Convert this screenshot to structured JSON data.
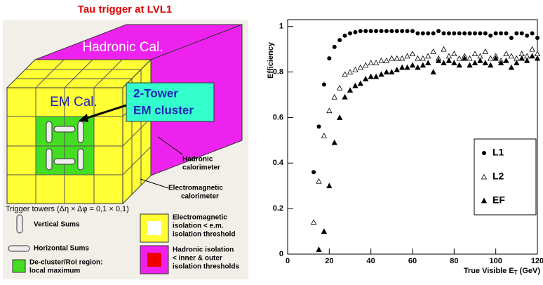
{
  "diagram": {
    "title": "Tau  trigger at LVL1",
    "hadronic_label": "Hadronic Cal.",
    "em_label": "EM Cal.",
    "cluster_box": [
      "2-Tower",
      "EM cluster"
    ],
    "hadronic_callout": [
      "Hadronic",
      "calorimeter"
    ],
    "em_callout": [
      "Electromagnetic",
      "calorimeter"
    ],
    "towers": "Trigger towers (Δη × Δφ = 0,1 × 0,1)",
    "legend": {
      "vertical": "Vertical Sums",
      "horizontal": "Horizontal Sums",
      "decluster": [
        "De-cluster/RoI region:",
        "local maximum"
      ],
      "em_iso": [
        "Electromagnetic",
        "isolation < e.m.",
        "isolation threshold"
      ],
      "had_iso": [
        "Hadronic isolation",
        "< inner & outer",
        "isolation thresholds"
      ]
    }
  },
  "chart_data": {
    "type": "scatter",
    "ylabel": "Efficiency",
    "xlabel": {
      "main": "True Visible E",
      "sub": "T",
      "unit": "(GeV)"
    },
    "x": [
      12.5,
      15,
      17.5,
      20,
      22.5,
      25,
      27.5,
      30,
      32.5,
      35,
      37.5,
      40,
      42.5,
      45,
      47.5,
      50,
      52.5,
      55,
      57.5,
      60,
      62.5,
      65,
      67.5,
      70,
      72.5,
      75,
      77.5,
      80,
      82.5,
      85,
      87.5,
      90,
      92.5,
      95,
      97.5,
      100,
      102.5,
      105,
      107.5,
      110,
      112.5,
      115,
      117.5,
      120
    ],
    "series": [
      {
        "name": "L1",
        "color": "#000000",
        "marker": "circle",
        "values": [
          0.36,
          0.56,
          0.745,
          0.86,
          0.91,
          0.94,
          0.96,
          0.97,
          0.975,
          0.98,
          0.98,
          0.98,
          0.98,
          0.98,
          0.98,
          0.98,
          0.98,
          0.98,
          0.98,
          0.98,
          0.97,
          0.97,
          0.97,
          0.97,
          0.98,
          0.97,
          0.97,
          0.97,
          0.97,
          0.97,
          0.97,
          0.97,
          0.97,
          0.97,
          0.96,
          0.97,
          0.97,
          0.97,
          0.95,
          0.97,
          0.97,
          0.96,
          0.97,
          0.95
        ]
      },
      {
        "name": "L2",
        "color": "#000000",
        "marker": "open-triangle",
        "values": [
          0.14,
          0.32,
          0.52,
          0.63,
          0.69,
          0.73,
          0.79,
          0.8,
          0.81,
          0.82,
          0.83,
          0.84,
          0.84,
          0.85,
          0.85,
          0.86,
          0.86,
          0.86,
          0.87,
          0.88,
          0.86,
          0.86,
          0.87,
          0.89,
          0.86,
          0.9,
          0.87,
          0.88,
          0.86,
          0.87,
          0.86,
          0.88,
          0.87,
          0.89,
          0.86,
          0.87,
          0.85,
          0.88,
          0.87,
          0.86,
          0.88,
          0.87,
          0.9,
          0.88
        ]
      },
      {
        "name": "EF",
        "color": "#000000",
        "marker": "triangle",
        "values": [
          null,
          0.02,
          0.1,
          0.3,
          0.49,
          0.6,
          0.69,
          0.72,
          0.74,
          0.75,
          0.77,
          0.78,
          0.78,
          0.79,
          0.8,
          0.8,
          0.81,
          0.82,
          0.82,
          0.83,
          0.82,
          0.83,
          0.84,
          0.8,
          0.85,
          0.84,
          0.85,
          0.84,
          0.83,
          0.86,
          0.83,
          0.84,
          0.85,
          0.84,
          0.83,
          0.86,
          0.84,
          0.85,
          0.82,
          0.84,
          0.86,
          0.85,
          0.87,
          0.86
        ]
      }
    ],
    "xlim": [
      0,
      120
    ],
    "ylim": [
      0,
      1.03
    ],
    "xticks": [
      0,
      20,
      40,
      60,
      80,
      100,
      120
    ],
    "yticks": [
      0,
      0.2,
      0.4,
      0.6,
      0.8,
      1
    ],
    "legend": "lower-right"
  }
}
